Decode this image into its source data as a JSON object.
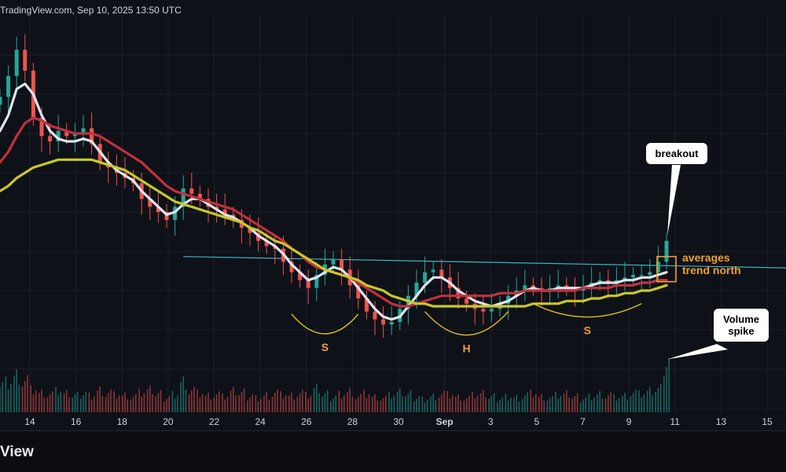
{
  "header": {
    "source": "TradingView.com, Sep 10, 2025 13:50 UTC"
  },
  "footer": {
    "brand": "View"
  },
  "colors": {
    "background": "#0e1117",
    "grid": "#1c2029",
    "axis_text": "#d1d4dc",
    "candle_up": "#26a69a",
    "candle_down": "#ef5350",
    "ma_white": "#e0e3eb",
    "ma_red": "#c2303d",
    "ma_yellow": "#c8c82a",
    "neckline": "#39b7c7",
    "pattern": "#e0c020",
    "highlight": "#f0a030",
    "volume_up": "#26a69a",
    "volume_down": "#ef5350"
  },
  "chart_data": {
    "type": "candlestick",
    "x_axis": {
      "ticks": [
        "14",
        "16",
        "18",
        "20",
        "22",
        "24",
        "26",
        "28",
        "30",
        "Sep",
        "3",
        "5",
        "7",
        "9",
        "11",
        "13",
        "15"
      ],
      "bold_ticks": [
        "Sep"
      ]
    },
    "price_series": [
      125,
      133,
      143,
      135,
      117,
      110,
      108,
      112,
      110,
      111,
      113,
      107,
      100,
      98,
      96,
      94,
      92,
      86,
      83,
      81,
      78,
      83,
      90,
      88,
      86,
      83,
      82,
      80,
      78,
      75,
      73,
      70,
      68,
      67,
      62,
      58,
      55,
      52,
      57,
      61,
      63,
      59,
      53,
      48,
      43,
      40,
      38,
      39,
      44,
      49,
      54,
      58,
      59,
      56,
      52,
      48,
      46,
      44,
      43,
      44,
      46,
      49,
      51,
      53,
      52,
      51,
      52,
      53,
      52,
      51,
      52,
      54,
      55,
      54,
      55,
      56,
      57,
      57,
      58,
      62,
      70
    ],
    "moving_averages": [
      {
        "name": "",
        "color_key": "ma_white",
        "values": [
          112,
          118,
          128,
          130,
          126,
          118,
          112,
          109,
          108,
          108,
          109,
          108,
          104,
          100,
          97,
          95,
          93,
          89,
          86,
          83,
          80,
          81,
          84,
          86,
          86,
          84,
          82,
          80,
          79,
          77,
          75,
          72,
          70,
          68,
          65,
          61,
          58,
          55,
          56,
          58,
          60,
          59,
          56,
          52,
          48,
          44,
          41,
          40,
          41,
          45,
          49,
          53,
          56,
          56,
          54,
          51,
          49,
          47,
          46,
          45,
          46,
          47,
          49,
          51,
          52,
          51,
          51,
          52,
          52,
          52,
          52,
          53,
          54,
          54,
          54,
          55,
          55,
          56,
          56,
          57,
          58
        ]
      },
      {
        "name": "",
        "color_key": "ma_red",
        "values": [
          100,
          104,
          110,
          115,
          117,
          116,
          114,
          113,
          112,
          111,
          111,
          111,
          110,
          108,
          106,
          104,
          102,
          100,
          97,
          94,
          91,
          89,
          88,
          87,
          86,
          85,
          84,
          83,
          82,
          80,
          78,
          76,
          74,
          72,
          70,
          67,
          65,
          62,
          60,
          59,
          58,
          57,
          56,
          54,
          52,
          50,
          48,
          46,
          45,
          45,
          46,
          47,
          48,
          49,
          49,
          49,
          49,
          49,
          49,
          49,
          50,
          50,
          50,
          51,
          51,
          51,
          51,
          51,
          51,
          51,
          52,
          52,
          52,
          52,
          53,
          53,
          53,
          54,
          54,
          55,
          55
        ]
      },
      {
        "name": "",
        "color_key": "ma_yellow",
        "values": [
          89,
          91,
          94,
          96,
          98,
          99,
          100,
          101,
          101,
          101,
          101,
          101,
          100,
          99,
          98,
          97,
          95,
          93,
          91,
          89,
          87,
          85,
          84,
          83,
          82,
          81,
          80,
          79,
          78,
          77,
          75,
          74,
          72,
          70,
          69,
          67,
          65,
          63,
          61,
          59,
          58,
          57,
          56,
          55,
          53,
          52,
          51,
          49,
          48,
          47,
          46,
          46,
          45,
          45,
          45,
          45,
          45,
          45,
          45,
          45,
          45,
          45,
          45,
          45,
          46,
          46,
          46,
          46,
          47,
          47,
          47,
          48,
          48,
          49,
          49,
          50,
          50,
          51,
          51,
          52,
          53
        ]
      }
    ],
    "neckline": {
      "start_index": 22,
      "start_price": 64,
      "slope_per_bar": -0.06
    },
    "volume": [
      22,
      25,
      30,
      26,
      18,
      15,
      14,
      16,
      14,
      13,
      15,
      14,
      18,
      16,
      14,
      13,
      12,
      15,
      17,
      14,
      12,
      15,
      25,
      18,
      15,
      13,
      14,
      12,
      16,
      15,
      13,
      12,
      14,
      16,
      14,
      13,
      15,
      13,
      18,
      14,
      12,
      15,
      17,
      13,
      15,
      12,
      11,
      13,
      15,
      14,
      12,
      11,
      13,
      15,
      14,
      12,
      11,
      13,
      14,
      12,
      11,
      13,
      12,
      14,
      15,
      12,
      11,
      13,
      14,
      12,
      11,
      13,
      15,
      14,
      12,
      13,
      15,
      14,
      16,
      18,
      40
    ],
    "annotations": {
      "left_shoulder": "S",
      "head": "H",
      "right_shoulder": "S",
      "breakout": "breakout",
      "averages": [
        "averages",
        "trend north"
      ],
      "volume_spike": [
        "Volume",
        "spike"
      ]
    },
    "price_range": [
      30,
      150
    ],
    "volume_range": [
      0,
      45
    ],
    "grid": true
  }
}
